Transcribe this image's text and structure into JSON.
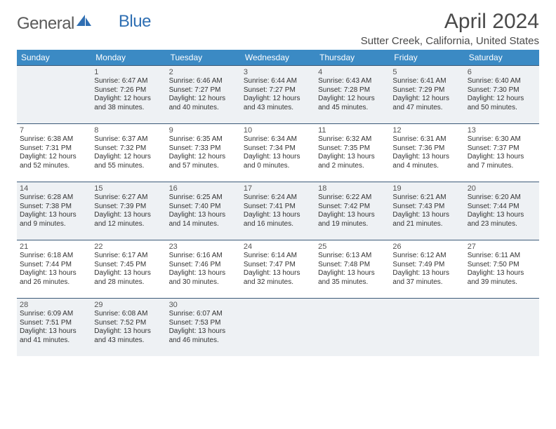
{
  "logo": {
    "first": "General",
    "second": "Blue"
  },
  "header": {
    "month": "April 2024",
    "location": "Sutter Creek, California, United States"
  },
  "colors": {
    "accent": "#3b8ac4",
    "rule": "#3b5a78",
    "altrow": "#eef1f4"
  },
  "dow": [
    "Sunday",
    "Monday",
    "Tuesday",
    "Wednesday",
    "Thursday",
    "Friday",
    "Saturday"
  ],
  "weeks": [
    [
      null,
      {
        "n": "1",
        "sr": "Sunrise: 6:47 AM",
        "ss": "Sunset: 7:26 PM",
        "d1": "Daylight: 12 hours",
        "d2": "and 38 minutes."
      },
      {
        "n": "2",
        "sr": "Sunrise: 6:46 AM",
        "ss": "Sunset: 7:27 PM",
        "d1": "Daylight: 12 hours",
        "d2": "and 40 minutes."
      },
      {
        "n": "3",
        "sr": "Sunrise: 6:44 AM",
        "ss": "Sunset: 7:27 PM",
        "d1": "Daylight: 12 hours",
        "d2": "and 43 minutes."
      },
      {
        "n": "4",
        "sr": "Sunrise: 6:43 AM",
        "ss": "Sunset: 7:28 PM",
        "d1": "Daylight: 12 hours",
        "d2": "and 45 minutes."
      },
      {
        "n": "5",
        "sr": "Sunrise: 6:41 AM",
        "ss": "Sunset: 7:29 PM",
        "d1": "Daylight: 12 hours",
        "d2": "and 47 minutes."
      },
      {
        "n": "6",
        "sr": "Sunrise: 6:40 AM",
        "ss": "Sunset: 7:30 PM",
        "d1": "Daylight: 12 hours",
        "d2": "and 50 minutes."
      }
    ],
    [
      {
        "n": "7",
        "sr": "Sunrise: 6:38 AM",
        "ss": "Sunset: 7:31 PM",
        "d1": "Daylight: 12 hours",
        "d2": "and 52 minutes."
      },
      {
        "n": "8",
        "sr": "Sunrise: 6:37 AM",
        "ss": "Sunset: 7:32 PM",
        "d1": "Daylight: 12 hours",
        "d2": "and 55 minutes."
      },
      {
        "n": "9",
        "sr": "Sunrise: 6:35 AM",
        "ss": "Sunset: 7:33 PM",
        "d1": "Daylight: 12 hours",
        "d2": "and 57 minutes."
      },
      {
        "n": "10",
        "sr": "Sunrise: 6:34 AM",
        "ss": "Sunset: 7:34 PM",
        "d1": "Daylight: 13 hours",
        "d2": "and 0 minutes."
      },
      {
        "n": "11",
        "sr": "Sunrise: 6:32 AM",
        "ss": "Sunset: 7:35 PM",
        "d1": "Daylight: 13 hours",
        "d2": "and 2 minutes."
      },
      {
        "n": "12",
        "sr": "Sunrise: 6:31 AM",
        "ss": "Sunset: 7:36 PM",
        "d1": "Daylight: 13 hours",
        "d2": "and 4 minutes."
      },
      {
        "n": "13",
        "sr": "Sunrise: 6:30 AM",
        "ss": "Sunset: 7:37 PM",
        "d1": "Daylight: 13 hours",
        "d2": "and 7 minutes."
      }
    ],
    [
      {
        "n": "14",
        "sr": "Sunrise: 6:28 AM",
        "ss": "Sunset: 7:38 PM",
        "d1": "Daylight: 13 hours",
        "d2": "and 9 minutes."
      },
      {
        "n": "15",
        "sr": "Sunrise: 6:27 AM",
        "ss": "Sunset: 7:39 PM",
        "d1": "Daylight: 13 hours",
        "d2": "and 12 minutes."
      },
      {
        "n": "16",
        "sr": "Sunrise: 6:25 AM",
        "ss": "Sunset: 7:40 PM",
        "d1": "Daylight: 13 hours",
        "d2": "and 14 minutes."
      },
      {
        "n": "17",
        "sr": "Sunrise: 6:24 AM",
        "ss": "Sunset: 7:41 PM",
        "d1": "Daylight: 13 hours",
        "d2": "and 16 minutes."
      },
      {
        "n": "18",
        "sr": "Sunrise: 6:22 AM",
        "ss": "Sunset: 7:42 PM",
        "d1": "Daylight: 13 hours",
        "d2": "and 19 minutes."
      },
      {
        "n": "19",
        "sr": "Sunrise: 6:21 AM",
        "ss": "Sunset: 7:43 PM",
        "d1": "Daylight: 13 hours",
        "d2": "and 21 minutes."
      },
      {
        "n": "20",
        "sr": "Sunrise: 6:20 AM",
        "ss": "Sunset: 7:44 PM",
        "d1": "Daylight: 13 hours",
        "d2": "and 23 minutes."
      }
    ],
    [
      {
        "n": "21",
        "sr": "Sunrise: 6:18 AM",
        "ss": "Sunset: 7:44 PM",
        "d1": "Daylight: 13 hours",
        "d2": "and 26 minutes."
      },
      {
        "n": "22",
        "sr": "Sunrise: 6:17 AM",
        "ss": "Sunset: 7:45 PM",
        "d1": "Daylight: 13 hours",
        "d2": "and 28 minutes."
      },
      {
        "n": "23",
        "sr": "Sunrise: 6:16 AM",
        "ss": "Sunset: 7:46 PM",
        "d1": "Daylight: 13 hours",
        "d2": "and 30 minutes."
      },
      {
        "n": "24",
        "sr": "Sunrise: 6:14 AM",
        "ss": "Sunset: 7:47 PM",
        "d1": "Daylight: 13 hours",
        "d2": "and 32 minutes."
      },
      {
        "n": "25",
        "sr": "Sunrise: 6:13 AM",
        "ss": "Sunset: 7:48 PM",
        "d1": "Daylight: 13 hours",
        "d2": "and 35 minutes."
      },
      {
        "n": "26",
        "sr": "Sunrise: 6:12 AM",
        "ss": "Sunset: 7:49 PM",
        "d1": "Daylight: 13 hours",
        "d2": "and 37 minutes."
      },
      {
        "n": "27",
        "sr": "Sunrise: 6:11 AM",
        "ss": "Sunset: 7:50 PM",
        "d1": "Daylight: 13 hours",
        "d2": "and 39 minutes."
      }
    ],
    [
      {
        "n": "28",
        "sr": "Sunrise: 6:09 AM",
        "ss": "Sunset: 7:51 PM",
        "d1": "Daylight: 13 hours",
        "d2": "and 41 minutes."
      },
      {
        "n": "29",
        "sr": "Sunrise: 6:08 AM",
        "ss": "Sunset: 7:52 PM",
        "d1": "Daylight: 13 hours",
        "d2": "and 43 minutes."
      },
      {
        "n": "30",
        "sr": "Sunrise: 6:07 AM",
        "ss": "Sunset: 7:53 PM",
        "d1": "Daylight: 13 hours",
        "d2": "and 46 minutes."
      },
      null,
      null,
      null,
      null
    ]
  ]
}
